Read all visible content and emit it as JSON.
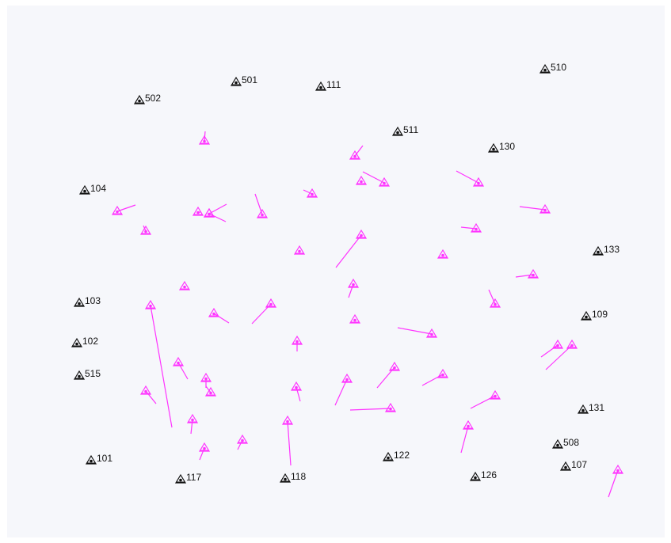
{
  "colors": {
    "background": "#f6f7fb",
    "benchmark": "#111111",
    "vector": "#ff33ff"
  },
  "legend": {},
  "benchmarks": [
    {
      "id": "501",
      "icon": "benchmark-triangle-icon"
    },
    {
      "id": "502",
      "icon": "benchmark-triangle-icon"
    },
    {
      "id": "111",
      "icon": "benchmark-triangle-icon"
    },
    {
      "id": "510",
      "icon": "benchmark-triangle-icon"
    },
    {
      "id": "511",
      "icon": "benchmark-triangle-icon"
    },
    {
      "id": "130",
      "icon": "benchmark-triangle-icon"
    },
    {
      "id": "104",
      "icon": "benchmark-triangle-icon"
    },
    {
      "id": "133",
      "icon": "benchmark-triangle-icon"
    },
    {
      "id": "103",
      "icon": "benchmark-triangle-icon"
    },
    {
      "id": "109",
      "icon": "benchmark-triangle-icon"
    },
    {
      "id": "102",
      "icon": "benchmark-triangle-icon"
    },
    {
      "id": "515",
      "icon": "benchmark-triangle-icon"
    },
    {
      "id": "131",
      "icon": "benchmark-triangle-icon"
    },
    {
      "id": "508",
      "icon": "benchmark-triangle-icon"
    },
    {
      "id": "107",
      "icon": "benchmark-triangle-icon"
    },
    {
      "id": "101",
      "icon": "benchmark-triangle-icon"
    },
    {
      "id": "122",
      "icon": "benchmark-triangle-icon"
    },
    {
      "id": "117",
      "icon": "benchmark-triangle-icon"
    },
    {
      "id": "118",
      "icon": "benchmark-triangle-icon"
    },
    {
      "id": "126",
      "icon": "benchmark-triangle-icon"
    }
  ],
  "vector_count_label": ""
}
